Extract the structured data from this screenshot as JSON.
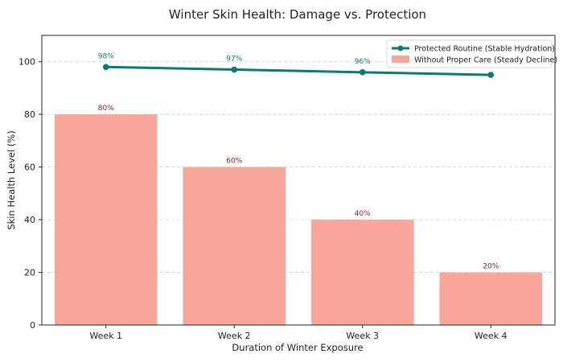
{
  "colors": {
    "bar": "#f9a69a",
    "bar_label": "#8b1a1a",
    "line": "#0b7a75",
    "line_label": "#0b7a75",
    "grid": "#cccccc",
    "axis": "#222222"
  },
  "chart_data": {
    "type": "bar",
    "title": "Winter Skin Health: Damage vs. Protection",
    "xlabel": "Duration of Winter Exposure",
    "ylabel": "Skin Health Level (%)",
    "ylim": [
      0,
      110
    ],
    "yticks": [
      0,
      20,
      40,
      60,
      80,
      100
    ],
    "grid": "horizontal dashed",
    "legend_placement": "top-right",
    "categories": [
      "Week 1",
      "Week 2",
      "Week 3",
      "Week 4"
    ],
    "series": [
      {
        "name": "Protected Routine (Stable Hydration)",
        "type": "line",
        "values": [
          98,
          97,
          96,
          95
        ],
        "labels": [
          "98%",
          "97%",
          "96%",
          ""
        ]
      },
      {
        "name": "Without Proper Care (Steady Decline)",
        "type": "bar",
        "values": [
          80,
          60,
          40,
          20
        ],
        "labels": [
          "80%",
          "60%",
          "40%",
          "20%"
        ]
      }
    ]
  }
}
